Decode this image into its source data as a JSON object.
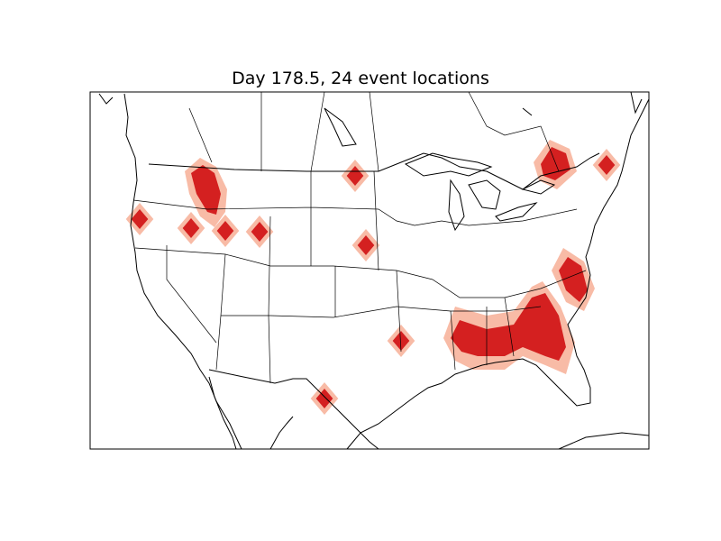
{
  "title": "Day 178.5, 24 event locations",
  "colors": {
    "event_core": "#d42020",
    "event_halo": "#f8bba6",
    "land_lines": "#000000",
    "background": "#ffffff"
  },
  "map": {
    "projection_region": "North America (continental US with southern Canada and northern Mexico)",
    "features": [
      "coastlines",
      "country borders",
      "state borders",
      "lakes"
    ]
  },
  "events": {
    "count": 24
  }
}
